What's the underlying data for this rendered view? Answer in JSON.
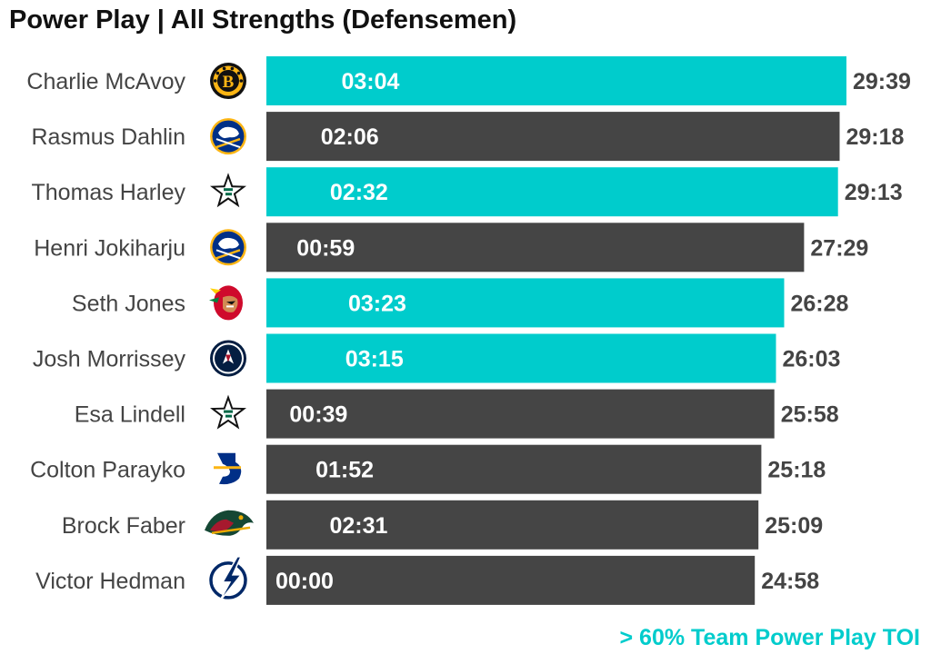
{
  "title": "Power Play | All Strengths (Defensemen)",
  "footnote": "> 60% Team Power Play TOI",
  "colors": {
    "highlight": "#00cccc",
    "normal": "#454545",
    "total_label": "#444444",
    "name_label": "#444444"
  },
  "chart_data": {
    "type": "bar",
    "orientation": "horizontal",
    "title": "Power Play | All Strengths (Defensemen)",
    "xlabel": "",
    "ylabel": "",
    "grid": false,
    "legend": "none",
    "xlim_minutes": [
      0,
      29.65
    ],
    "categories": [
      "Charlie McAvoy",
      "Rasmus Dahlin",
      "Thomas Harley",
      "Henri Jokiharju",
      "Seth Jones",
      "Josh Morrissey",
      "Esa Lindell",
      "Colton Parayko",
      "Brock Faber",
      "Victor Hedman"
    ],
    "teams": [
      "boston-bruins-logo-icon",
      "buffalo-sabres-logo-icon",
      "dallas-stars-logo-icon",
      "buffalo-sabres-logo-icon",
      "chicago-blackhawks-logo-icon",
      "winnipeg-jets-logo-icon",
      "dallas-stars-logo-icon",
      "st-louis-blues-logo-icon",
      "minnesota-wild-logo-icon",
      "tampa-bay-lightning-logo-icon"
    ],
    "toi_labels": [
      "29:39",
      "29:18",
      "29:13",
      "27:29",
      "26:28",
      "26:03",
      "25:58",
      "25:18",
      "25:09",
      "24:58"
    ],
    "toi_minutes": [
      29.65,
      29.3,
      29.2167,
      27.4833,
      26.4667,
      26.05,
      25.9667,
      25.3,
      25.15,
      24.9667
    ],
    "pp_labels": [
      "03:04",
      "02:06",
      "02:32",
      "00:59",
      "03:23",
      "03:15",
      "00:39",
      "01:52",
      "02:31",
      "00:00"
    ],
    "pp_minutes": [
      3.0667,
      2.1,
      2.5333,
      0.9833,
      3.3833,
      3.25,
      0.65,
      1.8667,
      2.5167,
      0
    ],
    "highlighted": [
      true,
      false,
      true,
      false,
      true,
      true,
      false,
      false,
      false,
      false
    ],
    "highlight_legend": "> 60% Team Power Play TOI"
  }
}
